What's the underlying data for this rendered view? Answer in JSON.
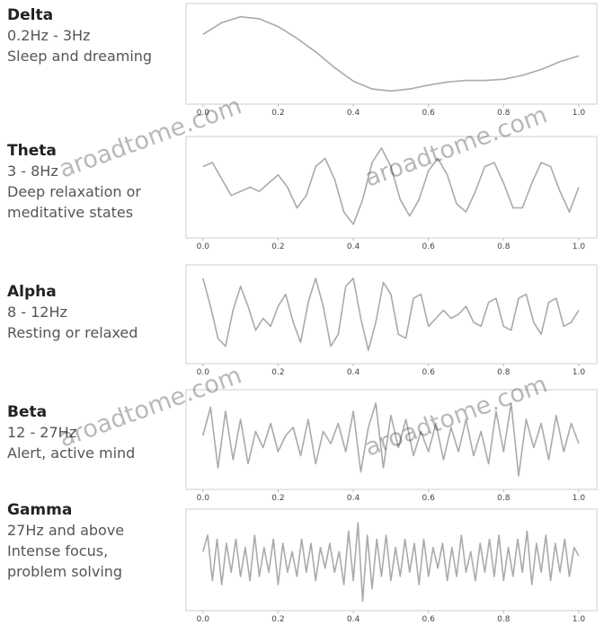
{
  "chart_data": [
    {
      "type": "line",
      "title": "Delta",
      "subtitle": "0.2Hz - 3Hz",
      "annotations": [
        "Sleep and dreaming"
      ],
      "color": "#aaaaaa",
      "x": [
        0,
        0.05,
        0.1,
        0.15,
        0.2,
        0.25,
        0.3,
        0.35,
        0.4,
        0.45,
        0.5,
        0.55,
        0.6,
        0.65,
        0.7,
        0.75,
        0.8,
        0.85,
        0.9,
        0.95,
        1
      ],
      "values": [
        0.5,
        0.8,
        0.95,
        0.9,
        0.7,
        0.4,
        0.05,
        -0.35,
        -0.7,
        -0.9,
        -0.95,
        -0.9,
        -0.8,
        -0.72,
        -0.68,
        -0.68,
        -0.65,
        -0.55,
        -0.4,
        -0.2,
        -0.05
      ],
      "xlim": [
        -0.045,
        1.048
      ],
      "ylim": [
        -1.15,
        1.15
      ],
      "xticks": [
        {
          "value": 0,
          "label": "0.0"
        },
        0.2,
        0.4,
        0.6,
        0.8,
        {
          "value": 1,
          "label": "1.0"
        }
      ]
    },
    {
      "type": "line",
      "title": "Theta",
      "subtitle": "3 - 8Hz",
      "annotations": [
        "Deep relaxation or",
        "meditative states"
      ],
      "color": "#aaaaaa",
      "x": [
        0,
        0.025,
        0.05,
        0.075,
        0.1,
        0.125,
        0.15,
        0.175,
        0.2,
        0.225,
        0.25,
        0.275,
        0.3,
        0.325,
        0.35,
        0.375,
        0.4,
        0.425,
        0.45,
        0.475,
        0.5,
        0.525,
        0.55,
        0.575,
        0.6,
        0.625,
        0.65,
        0.675,
        0.7,
        0.725,
        0.75,
        0.775,
        0.8,
        0.825,
        0.85,
        0.875,
        0.9,
        0.925,
        0.95,
        0.975,
        1
      ],
      "values": [
        0.5,
        0.6,
        0.2,
        -0.2,
        -0.1,
        0.0,
        -0.1,
        0.1,
        0.3,
        0.0,
        -0.5,
        -0.2,
        0.5,
        0.7,
        0.2,
        -0.6,
        -0.9,
        -0.3,
        0.6,
        0.95,
        0.5,
        -0.3,
        -0.7,
        -0.3,
        0.4,
        0.7,
        0.3,
        -0.4,
        -0.6,
        -0.1,
        0.5,
        0.6,
        0.1,
        -0.5,
        -0.5,
        0.1,
        0.6,
        0.5,
        -0.1,
        -0.6,
        0.0
      ],
      "xlim": [
        -0.045,
        1.048
      ],
      "ylim": [
        -1.1,
        1.1
      ],
      "xticks": [
        {
          "value": 0,
          "label": "0.0"
        },
        0.2,
        0.4,
        0.6,
        0.8,
        {
          "value": 1,
          "label": "1.0"
        }
      ]
    },
    {
      "type": "line",
      "title": "Alpha",
      "subtitle": "8 - 12Hz",
      "annotations": [
        "Resting or relaxed"
      ],
      "color": "#aaaaaa",
      "x": [
        0,
        0.02,
        0.04,
        0.06,
        0.08,
        0.1,
        0.12,
        0.14,
        0.16,
        0.18,
        0.2,
        0.22,
        0.24,
        0.26,
        0.28,
        0.3,
        0.32,
        0.34,
        0.36,
        0.38,
        0.4,
        0.42,
        0.44,
        0.46,
        0.48,
        0.5,
        0.52,
        0.54,
        0.56,
        0.58,
        0.6,
        0.62,
        0.64,
        0.66,
        0.68,
        0.7,
        0.72,
        0.74,
        0.76,
        0.78,
        0.8,
        0.82,
        0.84,
        0.86,
        0.88,
        0.9,
        0.92,
        0.94,
        0.96,
        0.98,
        1
      ],
      "values": [
        0.9,
        0.2,
        -0.6,
        -0.8,
        0.1,
        0.7,
        0.2,
        -0.4,
        -0.1,
        -0.3,
        0.2,
        0.5,
        -0.2,
        -0.7,
        0.3,
        0.9,
        0.2,
        -0.8,
        -0.5,
        0.7,
        0.9,
        -0.1,
        -0.9,
        -0.2,
        0.8,
        0.5,
        -0.5,
        -0.6,
        0.4,
        0.5,
        -0.3,
        -0.1,
        0.1,
        -0.1,
        0.0,
        0.2,
        -0.2,
        -0.3,
        0.3,
        0.4,
        -0.3,
        -0.4,
        0.4,
        0.5,
        -0.2,
        -0.5,
        0.3,
        0.4,
        -0.3,
        -0.2,
        0.1
      ],
      "xlim": [
        -0.045,
        1.048
      ],
      "ylim": [
        -1.1,
        1.1
      ],
      "xticks": [
        {
          "value": 0,
          "label": "0.0"
        },
        0.2,
        0.4,
        0.6,
        0.8,
        {
          "value": 1,
          "label": "1.0"
        }
      ]
    },
    {
      "type": "line",
      "title": "Beta",
      "subtitle": "12 - 27Hz",
      "annotations": [
        "Alert, active mind"
      ],
      "color": "#aaaaaa",
      "x": [
        0,
        0.02,
        0.04,
        0.06,
        0.08,
        0.1,
        0.12,
        0.14,
        0.16,
        0.18,
        0.2,
        0.22,
        0.24,
        0.26,
        0.28,
        0.3,
        0.32,
        0.34,
        0.36,
        0.38,
        0.4,
        0.42,
        0.44,
        0.46,
        0.48,
        0.5,
        0.52,
        0.54,
        0.56,
        0.58,
        0.6,
        0.62,
        0.64,
        0.66,
        0.68,
        0.7,
        0.72,
        0.74,
        0.76,
        0.78,
        0.8,
        0.82,
        0.84,
        0.86,
        0.88,
        0.9,
        0.92,
        0.94,
        0.96,
        0.98,
        1
      ],
      "values": [
        0.1,
        0.8,
        -0.7,
        0.7,
        -0.5,
        0.5,
        -0.6,
        0.2,
        -0.2,
        0.4,
        -0.3,
        0.1,
        0.3,
        -0.4,
        0.5,
        -0.6,
        0.2,
        -0.1,
        0.4,
        -0.3,
        0.7,
        -0.8,
        0.3,
        0.9,
        -0.7,
        0.6,
        -0.2,
        0.5,
        -0.4,
        0.2,
        -0.3,
        0.4,
        -0.5,
        0.3,
        -0.3,
        0.5,
        -0.4,
        0.2,
        -0.6,
        0.7,
        -0.3,
        0.9,
        -0.9,
        0.5,
        -0.2,
        0.4,
        -0.5,
        0.6,
        -0.3,
        0.4,
        -0.1
      ],
      "xlim": [
        -0.045,
        1.048
      ],
      "ylim": [
        -1.1,
        1.1
      ],
      "xticks": [
        {
          "value": 0,
          "label": "0.0"
        },
        0.2,
        0.4,
        0.6,
        0.8,
        {
          "value": 1,
          "label": "1.0"
        }
      ]
    },
    {
      "type": "line",
      "title": "Gamma",
      "subtitle": "27Hz and above",
      "annotations": [
        "Intense focus,",
        "problem solving"
      ],
      "color": "#aaaaaa",
      "x": [
        0,
        0.0125,
        0.025,
        0.0375,
        0.05,
        0.0625,
        0.075,
        0.0875,
        0.1,
        0.1125,
        0.125,
        0.1375,
        0.15,
        0.1625,
        0.175,
        0.1875,
        0.2,
        0.2125,
        0.225,
        0.2375,
        0.25,
        0.2625,
        0.275,
        0.2875,
        0.3,
        0.3125,
        0.325,
        0.3375,
        0.35,
        0.3625,
        0.375,
        0.3875,
        0.4,
        0.4125,
        0.425,
        0.4375,
        0.45,
        0.4625,
        0.475,
        0.4875,
        0.5,
        0.5125,
        0.525,
        0.5375,
        0.55,
        0.5625,
        0.575,
        0.5875,
        0.6,
        0.6125,
        0.625,
        0.6375,
        0.65,
        0.6625,
        0.675,
        0.6875,
        0.7,
        0.7125,
        0.725,
        0.7375,
        0.75,
        0.7625,
        0.775,
        0.7875,
        0.8,
        0.8125,
        0.825,
        0.8375,
        0.85,
        0.8625,
        0.875,
        0.8875,
        0.9,
        0.9125,
        0.925,
        0.9375,
        0.95,
        0.9625,
        0.975,
        0.9875,
        1
      ],
      "values": [
        0.2,
        0.6,
        -0.5,
        0.5,
        -0.6,
        0.4,
        -0.3,
        0.5,
        -0.4,
        0.3,
        -0.5,
        0.6,
        -0.4,
        0.3,
        -0.3,
        0.5,
        -0.6,
        0.4,
        -0.3,
        0.2,
        -0.4,
        0.5,
        -0.3,
        0.4,
        -0.5,
        0.3,
        -0.2,
        0.4,
        -0.3,
        0.2,
        -0.6,
        0.7,
        -0.5,
        0.9,
        -1.0,
        0.6,
        -0.7,
        0.5,
        -0.4,
        0.6,
        -0.5,
        0.3,
        -0.4,
        0.5,
        -0.3,
        0.4,
        -0.6,
        0.5,
        -0.4,
        0.3,
        -0.2,
        0.4,
        -0.5,
        0.3,
        -0.4,
        0.6,
        -0.3,
        0.2,
        -0.5,
        0.4,
        -0.3,
        0.5,
        -0.4,
        0.6,
        -0.5,
        0.3,
        -0.4,
        0.5,
        -0.3,
        0.7,
        -0.6,
        0.4,
        -0.3,
        0.6,
        -0.5,
        0.4,
        -0.3,
        0.5,
        -0.4,
        0.3,
        0.1
      ],
      "xlim": [
        -0.045,
        1.048
      ],
      "ylim": [
        -1.1,
        1.1
      ],
      "xticks": [
        {
          "value": 0,
          "label": "0.0"
        },
        0.2,
        0.4,
        0.6,
        0.8,
        {
          "value": 1,
          "label": "1.0"
        }
      ]
    }
  ],
  "watermarks": [
    "aroadtome.com",
    "aroadtome.com",
    "aroadtome.com",
    "aroadtome.com"
  ]
}
